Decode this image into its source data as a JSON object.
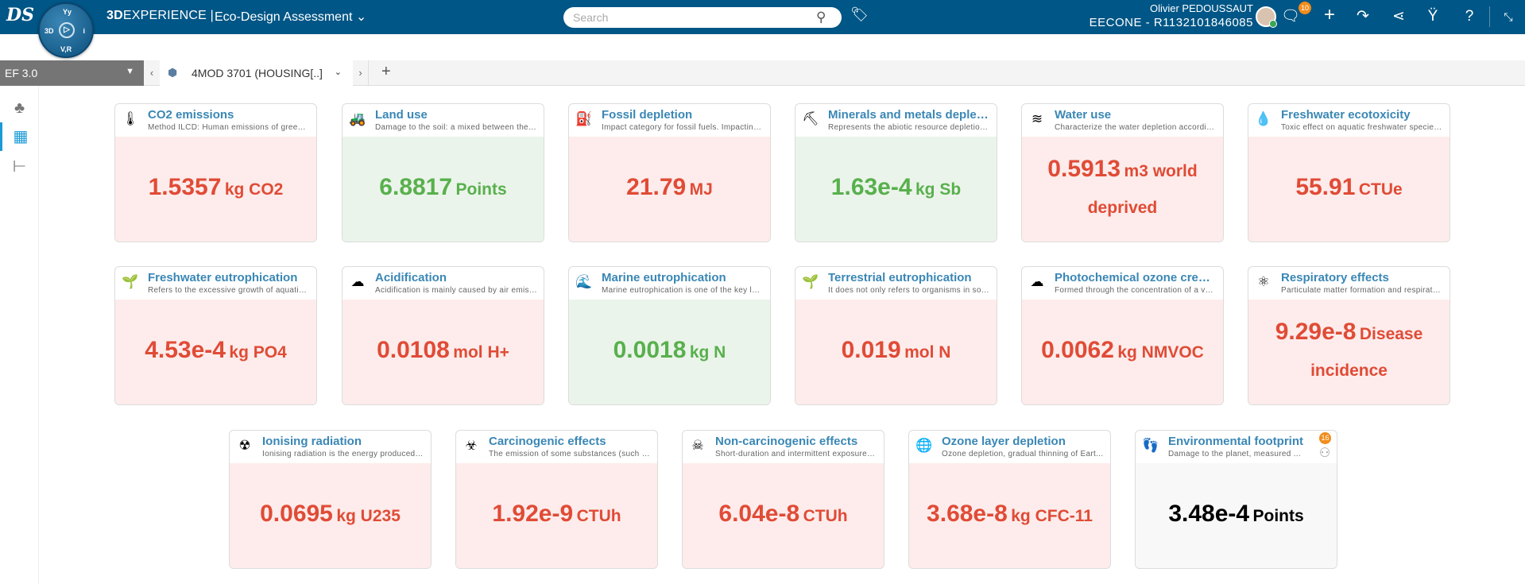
{
  "topbar": {
    "brand_bold": "3D",
    "brand_rest": "EXPERIENCE |",
    "app_title": "Eco-Design Assessment",
    "compass": {
      "top": "Yy",
      "left": "3D",
      "right": "i",
      "bottom": "V,R"
    },
    "search_placeholder": "Search",
    "user_name": "Olivier PEDOUSSAUT",
    "tenant": "EECONE - R1132101846085",
    "notifications_count": "10"
  },
  "tabbar": {
    "selector": "EF 3.0",
    "tab_label": "4MOD 3701 (HOUSING[..]"
  },
  "colors": {
    "header": "#005686",
    "bad": "#e04b36",
    "good": "#58b04d",
    "neutral": "#000000",
    "title": "#3a87b5"
  },
  "cards": [
    {
      "title": "CO2 emissions",
      "desc": "Method ILCD: Human emissions of greenh...",
      "value": "1.5357",
      "unit": "kg CO2",
      "status": "red",
      "icon": "globe-thermometer-icon"
    },
    {
      "title": "Land use",
      "desc": "Damage to the soil: a mixed between the ...",
      "value": "6.8817",
      "unit": "Points",
      "status": "green",
      "icon": "tractor-icon"
    },
    {
      "title": "Fossil depletion",
      "desc": "Impact category for fossil fuels. Impacting ...",
      "value": "21.79",
      "unit": "MJ",
      "status": "red",
      "icon": "fossil-icon"
    },
    {
      "title": "Minerals and metals deplet...",
      "desc": "Represents the abiotic resource depletion,...",
      "value": "1.63e-4",
      "unit": "kg Sb",
      "status": "green",
      "icon": "mineral-icon"
    },
    {
      "title": "Water use",
      "desc": "Characterize the water depletion accordin...",
      "value": "0.5913",
      "unit": "m3 world deprived",
      "status": "red",
      "icon": "water-icon"
    },
    {
      "title": "Freshwater ecotoxicity",
      "desc": "Toxic effect on aquatic freshwater species....",
      "value": "55.91",
      "unit": "CTUe",
      "status": "red",
      "icon": "toxic-drop-icon"
    },
    {
      "title": "Freshwater eutrophication",
      "desc": "Refers to the excessive growth of aquatic ...",
      "value": "4.53e-4",
      "unit": "kg PO4",
      "status": "red",
      "icon": "sprout-drop-icon"
    },
    {
      "title": "Acidification",
      "desc": "Acidification is mainly caused by air emiss...",
      "value": "0.0108",
      "unit": "mol H+",
      "status": "red",
      "icon": "acid-cloud-icon"
    },
    {
      "title": "Marine eutrophication",
      "desc": "Marine eutrophication is one of the key lo...",
      "value": "0.0018",
      "unit": "kg N",
      "status": "green",
      "icon": "marine-icon"
    },
    {
      "title": "Terrestrial eutrophication",
      "desc": "It does not only refers to organisms in soil ...",
      "value": "0.019",
      "unit": "mol N",
      "status": "red",
      "icon": "soil-sprout-icon"
    },
    {
      "title": "Photochemical ozone creat...",
      "desc": "Formed through the concentration of a var...",
      "value": "0.0062",
      "unit": "kg NMVOC",
      "status": "red",
      "icon": "ozone-cloud-icon"
    },
    {
      "title": "Respiratory effects",
      "desc": "Particulate matter formation and respirato...",
      "value": "9.29e-8",
      "unit": "Disease incidence",
      "status": "red",
      "icon": "molecule-icon"
    },
    {
      "title": "Ionising radiation",
      "desc": "Ionising radiation is the energy produced f...",
      "value": "0.0695",
      "unit": "kg U235",
      "status": "red",
      "icon": "radiation-icon"
    },
    {
      "title": "Carcinogenic effects",
      "desc": "The emission of some substances (such as...",
      "value": "1.92e-9",
      "unit": "CTUh",
      "status": "red",
      "icon": "human-hazard-icon"
    },
    {
      "title": "Non-carcinogenic effects",
      "desc": "Short-duration and intermittent exposures ...",
      "value": "6.04e-8",
      "unit": "CTUh",
      "status": "red",
      "icon": "human-toxic-icon"
    },
    {
      "title": "Ozone layer depletion",
      "desc": "Ozone depletion, gradual thinning of Eart...",
      "value": "3.68e-8",
      "unit": "kg CFC-11",
      "status": "red",
      "icon": "ozone-globe-icon"
    },
    {
      "title": "Environmental footprint",
      "desc": "Damage to the planet, measured ...",
      "value": "3.48e-4",
      "unit": "Points",
      "status": "gray",
      "icon": "footprint-icon",
      "sub_count": "16"
    }
  ]
}
